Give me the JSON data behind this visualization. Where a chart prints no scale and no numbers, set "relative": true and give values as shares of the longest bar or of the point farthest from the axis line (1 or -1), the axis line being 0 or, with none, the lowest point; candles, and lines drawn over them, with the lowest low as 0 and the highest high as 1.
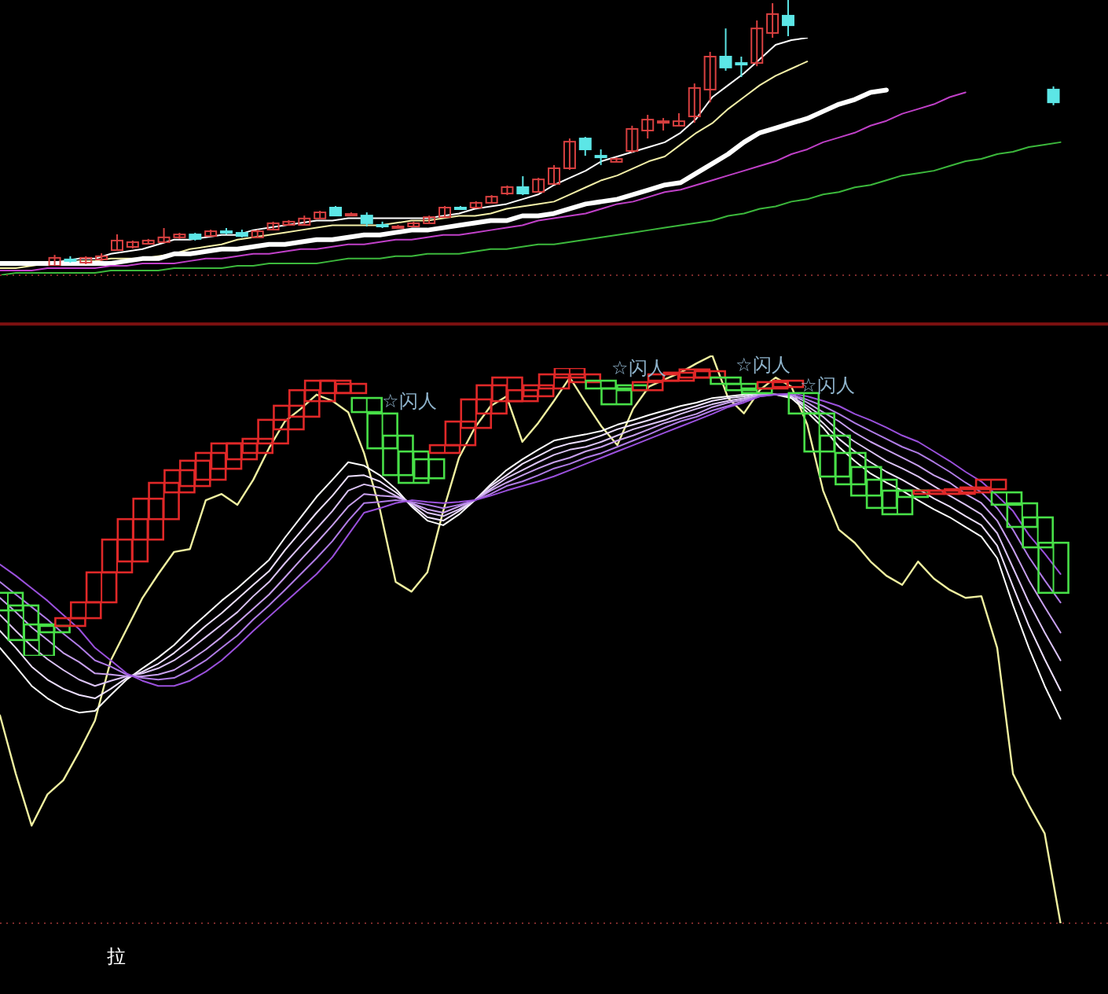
{
  "chart_data": [
    {
      "type": "candlestick",
      "relative": true,
      "categories": [
        null,
        null,
        null,
        null,
        null,
        null,
        null,
        null,
        null,
        null,
        null,
        null,
        null,
        null,
        null,
        null,
        null,
        null,
        null,
        null,
        null,
        null,
        null,
        null,
        null,
        null,
        null,
        null,
        null,
        null,
        null,
        null,
        null,
        null,
        null,
        null,
        null,
        null,
        null,
        null,
        null,
        null,
        null,
        null,
        null,
        null,
        null,
        null,
        null,
        null,
        null,
        null,
        null,
        null,
        null,
        null,
        null,
        null,
        null,
        null,
        null,
        null,
        null,
        null,
        null,
        null,
        null,
        null,
        null,
        null,
        null
      ],
      "ohlc": [
        null,
        null,
        null,
        [
          0,
          0.041,
          0,
          0.03
        ],
        [
          0.024,
          0.036,
          0.012,
          0.018
        ],
        [
          0.012,
          0.036,
          0.006,
          0.03
        ],
        [
          0.024,
          0.047,
          0.018,
          0.036
        ],
        [
          0.059,
          0.118,
          0.059,
          0.095
        ],
        [
          0.071,
          0.095,
          0.065,
          0.089
        ],
        [
          0.083,
          0.101,
          0.083,
          0.095
        ],
        [
          0.089,
          0.142,
          0.089,
          0.107
        ],
        [
          0.107,
          0.124,
          0.101,
          0.118
        ],
        [
          0.118,
          0.124,
          0.095,
          0.101
        ],
        [
          0.112,
          0.136,
          0.112,
          0.13
        ],
        [
          0.13,
          0.142,
          0.118,
          0.124
        ],
        [
          0.124,
          0.136,
          0.107,
          0.112
        ],
        [
          0.107,
          0.136,
          0.107,
          0.13
        ],
        [
          0.136,
          0.166,
          0.136,
          0.16
        ],
        [
          0.154,
          0.172,
          0.154,
          0.166
        ],
        [
          0.154,
          0.189,
          0.154,
          0.178
        ],
        [
          0.178,
          0.207,
          0.178,
          0.201
        ],
        [
          0.219,
          0.225,
          0.189,
          0.189
        ],
        [
          0.189,
          0.201,
          0.189,
          0.195
        ],
        [
          0.189,
          0.201,
          0.148,
          0.16
        ],
        [
          0.154,
          0.166,
          0.142,
          0.148
        ],
        [
          0.142,
          0.154,
          0.142,
          0.148
        ],
        [
          0.148,
          0.166,
          0.148,
          0.16
        ],
        [
          0.16,
          0.189,
          0.16,
          0.183
        ],
        [
          0.183,
          0.225,
          0.183,
          0.219
        ],
        [
          0.219,
          0.225,
          0.213,
          0.213
        ],
        [
          0.219,
          0.243,
          0.219,
          0.237
        ],
        [
          0.237,
          0.266,
          0.237,
          0.26
        ],
        [
          0.272,
          0.302,
          0.266,
          0.296
        ],
        [
          0.296,
          0.337,
          0.266,
          0.272
        ],
        [
          0.278,
          0.331,
          0.278,
          0.325
        ],
        [
          0.308,
          0.379,
          0.308,
          0.367
        ],
        [
          0.367,
          0.479,
          0.361,
          0.467
        ],
        [
          0.479,
          0.485,
          0.414,
          0.438
        ],
        [
          0.414,
          0.438,
          0.379,
          0.408
        ],
        [
          0.391,
          0.408,
          0.391,
          0.402
        ],
        [
          0.432,
          0.527,
          0.426,
          0.515
        ],
        [
          0.509,
          0.568,
          0.479,
          0.55
        ],
        [
          0.538,
          0.556,
          0.509,
          0.544
        ],
        [
          0.527,
          0.574,
          0.527,
          0.544
        ],
        [
          0.562,
          0.686,
          0.538,
          0.669
        ],
        [
          0.663,
          0.805,
          0.615,
          0.787
        ],
        [
          0.787,
          0.893,
          0.734,
          0.746
        ],
        [
          0.763,
          0.787,
          0.71,
          0.757
        ],
        [
          0.763,
          0.923,
          0.751,
          0.893
        ],
        [
          0.876,
          0.988,
          0.858,
          0.947
        ],
        [
          0.941,
          1,
          0.864,
          0.905
        ],
        null,
        null,
        null,
        null,
        null,
        null,
        null,
        null,
        null,
        null,
        null,
        null,
        null,
        null,
        null,
        null,
        [
          0.663,
          0.675,
          0.604,
          0.615
        ],
        null,
        null,
        null
      ],
      "colors": [
        null,
        null,
        null,
        "#d84040",
        "#5ce6e6",
        "#d84040",
        "#d84040",
        "#d84040",
        "#d84040",
        "#d84040",
        "#d84040",
        "#d84040",
        "#5ce6e6",
        "#d84040",
        "#5ce6e6",
        "#5ce6e6",
        "#d84040",
        "#d84040",
        "#d84040",
        "#d84040",
        "#d84040",
        "#5ce6e6",
        "#d84040",
        "#5ce6e6",
        "#5ce6e6",
        "#d84040",
        "#d84040",
        "#d84040",
        "#d84040",
        "#5ce6e6",
        "#d84040",
        "#d84040",
        "#d84040",
        "#5ce6e6",
        "#d84040",
        "#d84040",
        "#d84040",
        "#5ce6e6",
        "#5ce6e6",
        "#d84040",
        "#d84040",
        "#d84040",
        "#d84040",
        "#d84040",
        "#d84040",
        "#d84040",
        "#5ce6e6",
        "#5ce6e6",
        "#d84040",
        "#d84040",
        "#5ce6e6",
        null,
        null,
        null,
        null,
        null,
        null,
        null,
        null,
        null,
        null,
        null,
        null,
        null,
        null,
        null,
        null,
        "#5ce6e6",
        null,
        null,
        null
      ]
    },
    {
      "type": "line",
      "relative": true,
      "categories": [
        null,
        null,
        null,
        null,
        null,
        null,
        null,
        null,
        null,
        null,
        null,
        null,
        null,
        null,
        null,
        null,
        null,
        null,
        null,
        null,
        null,
        null,
        null,
        null,
        null,
        null,
        null,
        null,
        null,
        null,
        null,
        null,
        null,
        null,
        null,
        null,
        null,
        null,
        null,
        null,
        null,
        null,
        null,
        null,
        null,
        null,
        null,
        null,
        null,
        null,
        null,
        null,
        null,
        null,
        null,
        null,
        null,
        null,
        null,
        null,
        null,
        null,
        null,
        null,
        null,
        null,
        null,
        null,
        null,
        null,
        null
      ],
      "series": [
        {
          "color": "#ffffff",
          "values": [
            0.05,
            0.05,
            0.05,
            0.05,
            0.06,
            0.07,
            0.07,
            0.09,
            0.1,
            0.11,
            0.13,
            0.15,
            0.15,
            0.16,
            0.17,
            0.17,
            0.19,
            0.2,
            0.21,
            0.22,
            0.23,
            0.23,
            0.24,
            0.24,
            0.24,
            0.24,
            0.24,
            0.24,
            0.25,
            0.26,
            0.28,
            0.29,
            0.3,
            0.32,
            0.34,
            0.38,
            0.41,
            0.44,
            0.48,
            0.5,
            0.52,
            0.54,
            0.56,
            0.6,
            0.66,
            0.75,
            0.8,
            0.85,
            0.91,
            0.97,
            0.99,
            1,
            null,
            null,
            null,
            null,
            null,
            null,
            null,
            null,
            null,
            null,
            null,
            null,
            null,
            null,
            null,
            null,
            null,
            null,
            null
          ]
        },
        {
          "color": "#f4f0a8",
          "values": [
            0.03,
            0.03,
            0.04,
            0.05,
            0.05,
            0.06,
            0.06,
            0.07,
            0.07,
            0.07,
            0.08,
            0.09,
            0.11,
            0.12,
            0.13,
            0.15,
            0.16,
            0.17,
            0.18,
            0.19,
            0.2,
            0.21,
            0.21,
            0.21,
            0.21,
            0.22,
            0.23,
            0.23,
            0.24,
            0.25,
            0.25,
            0.26,
            0.28,
            0.29,
            0.3,
            0.31,
            0.34,
            0.37,
            0.4,
            0.42,
            0.45,
            0.48,
            0.5,
            0.55,
            0.6,
            0.64,
            0.7,
            0.75,
            0.8,
            0.84,
            0.87,
            0.9,
            null,
            null,
            null,
            null,
            null,
            null,
            null,
            null,
            null,
            null,
            null,
            null,
            null,
            null,
            null,
            null,
            null,
            null,
            null
          ]
        },
        {
          "color": "#ffffff",
          "values": [
            0.05,
            0.05,
            0.05,
            0.05,
            0.05,
            0.05,
            0.05,
            0.05,
            0.06,
            0.07,
            0.07,
            0.09,
            0.09,
            0.1,
            0.11,
            0.11,
            0.12,
            0.13,
            0.13,
            0.14,
            0.15,
            0.15,
            0.16,
            0.17,
            0.17,
            0.18,
            0.19,
            0.19,
            0.2,
            0.21,
            0.22,
            0.23,
            0.23,
            0.25,
            0.25,
            0.26,
            0.28,
            0.3,
            0.31,
            0.32,
            0.34,
            0.36,
            0.38,
            0.39,
            0.43,
            0.47,
            0.51,
            0.56,
            0.6,
            0.62,
            0.64,
            0.66,
            0.69,
            0.72,
            0.74,
            0.77,
            0.78,
            null,
            null,
            null,
            null,
            null,
            null,
            null,
            null,
            null,
            null,
            null,
            null,
            null,
            null
          ]
        },
        {
          "color": "#c040c8",
          "values": [
            0.02,
            0.02,
            0.02,
            0.03,
            0.03,
            0.03,
            0.03,
            0.04,
            0.04,
            0.05,
            0.05,
            0.05,
            0.06,
            0.07,
            0.07,
            0.08,
            0.09,
            0.09,
            0.1,
            0.11,
            0.11,
            0.12,
            0.13,
            0.13,
            0.14,
            0.15,
            0.15,
            0.16,
            0.17,
            0.17,
            0.18,
            0.19,
            0.2,
            0.21,
            0.23,
            0.24,
            0.25,
            0.26,
            0.28,
            0.3,
            0.31,
            0.33,
            0.35,
            0.36,
            0.38,
            0.4,
            0.42,
            0.44,
            0.46,
            0.48,
            0.51,
            0.53,
            0.56,
            0.58,
            0.6,
            0.63,
            0.65,
            0.68,
            0.7,
            0.72,
            0.75,
            0.77,
            null,
            null,
            null,
            null,
            null,
            null,
            null,
            null,
            null
          ]
        },
        {
          "color": "#3cb83c",
          "values": [
            0,
            0.01,
            0.01,
            0.01,
            0.01,
            0.01,
            0.01,
            0.02,
            0.02,
            0.02,
            0.02,
            0.03,
            0.03,
            0.03,
            0.03,
            0.04,
            0.04,
            0.05,
            0.05,
            0.05,
            0.05,
            0.06,
            0.07,
            0.07,
            0.07,
            0.08,
            0.08,
            0.09,
            0.09,
            0.09,
            0.1,
            0.11,
            0.11,
            0.12,
            0.13,
            0.13,
            0.14,
            0.15,
            0.16,
            0.17,
            0.18,
            0.19,
            0.2,
            0.21,
            0.22,
            0.23,
            0.25,
            0.26,
            0.28,
            0.29,
            0.31,
            0.32,
            0.34,
            0.35,
            0.37,
            0.38,
            0.4,
            0.42,
            0.43,
            0.44,
            0.46,
            0.48,
            0.49,
            0.51,
            0.52,
            0.54,
            0.55,
            0.56,
            null,
            null,
            null
          ]
        }
      ]
    },
    {
      "type": "candlestick",
      "relative": true,
      "categories": [
        null,
        null,
        null,
        null,
        null,
        null,
        null,
        null,
        null,
        null,
        null,
        null,
        null,
        null,
        null,
        null,
        null,
        null,
        null,
        null,
        null,
        null,
        null,
        null,
        null,
        null,
        null,
        null,
        null,
        null,
        null,
        null,
        null,
        null,
        null,
        null,
        null,
        null,
        null,
        null,
        null,
        null,
        null,
        null,
        null,
        null,
        null,
        null,
        null,
        null,
        null,
        null,
        null,
        null,
        null,
        null,
        null,
        null,
        null,
        null,
        null,
        null,
        null,
        null,
        null,
        null,
        null,
        null,
        null,
        null,
        null
      ],
      "ohlc": [
        [
          0.219,
          0.219,
          0.158,
          0.158
        ],
        [
          0.175,
          0.175,
          0.055,
          0.055
        ],
        [
          0.109,
          0.109,
          0,
          0
        ],
        [
          0.104,
          0.104,
          0.082,
          0.082
        ],
        [
          0.104,
          0.131,
          0.104,
          0.131
        ],
        [
          0.131,
          0.186,
          0.131,
          0.186
        ],
        [
          0.186,
          0.29,
          0.186,
          0.29
        ],
        [
          0.29,
          0.404,
          0.29,
          0.404
        ],
        [
          0.328,
          0.475,
          0.328,
          0.475
        ],
        [
          0.404,
          0.546,
          0.404,
          0.546
        ],
        [
          0.475,
          0.601,
          0.475,
          0.601
        ],
        [
          0.568,
          0.645,
          0.568,
          0.645
        ],
        [
          0.59,
          0.678,
          0.59,
          0.678
        ],
        [
          0.612,
          0.705,
          0.612,
          0.705
        ],
        [
          0.65,
          0.738,
          0.65,
          0.738
        ],
        [
          0.683,
          0.738,
          0.683,
          0.738
        ],
        [
          0.705,
          0.754,
          0.705,
          0.754
        ],
        [
          0.738,
          0.82,
          0.738,
          0.82
        ],
        [
          0.787,
          0.869,
          0.787,
          0.869
        ],
        [
          0.831,
          0.923,
          0.831,
          0.923
        ],
        [
          0.885,
          0.956,
          0.885,
          0.956
        ],
        [
          0.913,
          0.956,
          0.913,
          0.956
        ],
        [
          0.913,
          0.945,
          0.913,
          0.945
        ],
        [
          0.896,
          0.896,
          0.847,
          0.847
        ],
        [
          0.842,
          0.842,
          0.721,
          0.721
        ],
        [
          0.765,
          0.765,
          0.628,
          0.628
        ],
        [
          0.71,
          0.71,
          0.601,
          0.601
        ],
        [
          0.683,
          0.683,
          0.617,
          0.617
        ],
        [
          0.705,
          0.732,
          0.705,
          0.732
        ],
        [
          0.732,
          0.814,
          0.732,
          0.814
        ],
        [
          0.792,
          0.891,
          0.792,
          0.891
        ],
        [
          0.842,
          0.94,
          0.842,
          0.94
        ],
        [
          0.885,
          0.967,
          0.885,
          0.967
        ],
        [
          0.885,
          0.923,
          0.885,
          0.923
        ],
        [
          0.902,
          0.94,
          0.902,
          0.94
        ],
        [
          0.929,
          0.978,
          0.929,
          0.978
        ],
        [
          0.967,
          1,
          0.967,
          1
        ],
        [
          0.951,
          0.978,
          0.951,
          0.978
        ],
        [
          0.956,
          0.956,
          0.929,
          0.929
        ],
        [
          0.929,
          0.929,
          0.874,
          0.874
        ],
        [
          0.94,
          0.94,
          0.923,
          0.923
        ],
        [
          0.923,
          0.951,
          0.923,
          0.951
        ],
        [
          0.956,
          0.978,
          0.956,
          0.978
        ],
        [
          0.956,
          0.984,
          0.956,
          0.984
        ],
        [
          0.967,
          0.995,
          0.967,
          0.995
        ],
        [
          0.967,
          0.989,
          0.967,
          0.989
        ],
        [
          0.967,
          0.967,
          0.945,
          0.945
        ],
        [
          0.945,
          0.945,
          0.923,
          0.923
        ],
        [
          0.929,
          0.929,
          0.913,
          0.913
        ],
        [
          0.929,
          0.951,
          0.929,
          0.951
        ],
        [
          0.934,
          0.956,
          0.934,
          0.956
        ],
        [
          0.913,
          0.913,
          0.842,
          0.842
        ],
        [
          0.842,
          0.842,
          0.71,
          0.71
        ],
        [
          0.765,
          0.765,
          0.623,
          0.623
        ],
        [
          0.705,
          0.705,
          0.596,
          0.596
        ],
        [
          0.656,
          0.656,
          0.557,
          0.557
        ],
        [
          0.612,
          0.612,
          0.514,
          0.514
        ],
        [
          0.574,
          0.574,
          0.492,
          0.492
        ],
        [
          0.574,
          0.574,
          0.552,
          0.552
        ],
        [
          0.563,
          0.574,
          0.563,
          0.574
        ],
        [
          0.563,
          0.574,
          0.563,
          0.574
        ],
        [
          0.563,
          0.579,
          0.563,
          0.579
        ],
        [
          0.568,
          0.585,
          0.568,
          0.585
        ],
        [
          0.579,
          0.612,
          0.579,
          0.612
        ],
        [
          0.568,
          0.568,
          0.525,
          0.525
        ],
        [
          0.53,
          0.53,
          0.448,
          0.448
        ],
        [
          0.481,
          0.481,
          0.377,
          0.377
        ],
        [
          0.393,
          0.393,
          0.219,
          0.219
        ],
        null,
        null,
        null
      ],
      "colors": [
        "#48e048",
        "#48e048",
        "#48e048",
        "#48e048",
        "#e02828",
        "#e02828",
        "#e02828",
        "#e02828",
        "#e02828",
        "#e02828",
        "#e02828",
        "#e02828",
        "#e02828",
        "#e02828",
        "#e02828",
        "#e02828",
        "#e02828",
        "#e02828",
        "#e02828",
        "#e02828",
        "#e02828",
        "#e02828",
        "#e02828",
        "#48e048",
        "#48e048",
        "#48e048",
        "#48e048",
        "#48e048",
        "#e02828",
        "#e02828",
        "#e02828",
        "#e02828",
        "#e02828",
        "#e02828",
        "#e02828",
        "#e02828",
        "#e02828",
        "#e02828",
        "#48e048",
        "#48e048",
        "#48e048",
        "#e02828",
        "#e02828",
        "#e02828",
        "#e02828",
        "#e02828",
        "#48e048",
        "#48e048",
        "#48e048",
        "#e02828",
        "#e02828",
        "#48e048",
        "#48e048",
        "#48e048",
        "#48e048",
        "#48e048",
        "#48e048",
        "#48e048",
        "#48e048",
        "#e02828",
        "#e02828",
        "#e02828",
        "#e02828",
        "#e02828",
        "#48e048",
        "#48e048",
        "#48e048",
        "#48e048",
        null,
        null,
        null
      ]
    },
    {
      "type": "line",
      "relative": true,
      "categories": [
        null,
        null,
        null,
        null,
        null,
        null,
        null,
        null,
        null,
        null,
        null,
        null,
        null,
        null,
        null,
        null,
        null,
        null,
        null,
        null,
        null,
        null,
        null,
        null,
        null,
        null,
        null,
        null,
        null,
        null,
        null,
        null,
        null,
        null,
        null,
        null,
        null,
        null,
        null,
        null,
        null,
        null,
        null,
        null,
        null,
        null,
        null,
        null,
        null,
        null,
        null,
        null,
        null,
        null,
        null,
        null,
        null,
        null,
        null,
        null,
        null,
        null,
        null,
        null,
        null,
        null,
        null,
        null,
        null,
        null,
        null
      ],
      "series": [
        {
          "color": "#f0f0a0",
          "values": [
            0.366,
            0.263,
            0.172,
            0.227,
            0.252,
            0.302,
            0.357,
            0.463,
            0.518,
            0.573,
            0.615,
            0.654,
            0.659,
            0.745,
            0.756,
            0.737,
            0.781,
            0.837,
            0.884,
            0.906,
            0.931,
            0.92,
            0.9,
            0.828,
            0.729,
            0.601,
            0.584,
            0.618,
            0.726,
            0.82,
            0.873,
            0.911,
            0.928,
            0.848,
            0.881,
            0.92,
            0.961,
            0.917,
            0.875,
            0.842,
            0.906,
            0.945,
            0.958,
            0.97,
            0.986,
            1,
            0.925,
            0.898,
            0.939,
            0.961,
            0.945,
            0.878,
            0.762,
            0.693,
            0.67,
            0.637,
            0.612,
            0.596,
            0.637,
            0.607,
            0.587,
            0.573,
            0.576,
            0.485,
            0.263,
            0.208,
            0.158,
            0,
            null,
            null,
            null
          ]
        },
        {
          "color": "#ffffff",
          "values": [
            0.485,
            0.452,
            0.418,
            0.396,
            0.38,
            0.371,
            0.374,
            0.402,
            0.429,
            0.449,
            0.468,
            0.49,
            0.518,
            0.543,
            0.568,
            0.59,
            0.615,
            0.64,
            0.679,
            0.715,
            0.751,
            0.781,
            0.812,
            0.806,
            0.789,
            0.765,
            0.734,
            0.709,
            0.701,
            0.72,
            0.745,
            0.773,
            0.798,
            0.817,
            0.834,
            0.85,
            0.856,
            0.861,
            0.867,
            0.878,
            0.886,
            0.895,
            0.903,
            0.911,
            0.917,
            0.925,
            0.928,
            0.931,
            0.933,
            0.931,
            0.925,
            0.9,
            0.873,
            0.839,
            0.814,
            0.792,
            0.776,
            0.762,
            0.745,
            0.729,
            0.715,
            0.698,
            0.681,
            0.643,
            0.56,
            0.485,
            0.418,
            0.36,
            null,
            null,
            null
          ]
        },
        {
          "color": "#eee0ff",
          "values": [
            0.515,
            0.485,
            0.452,
            0.429,
            0.413,
            0.402,
            0.396,
            0.413,
            0.432,
            0.443,
            0.457,
            0.476,
            0.499,
            0.524,
            0.546,
            0.571,
            0.596,
            0.62,
            0.657,
            0.69,
            0.723,
            0.753,
            0.787,
            0.789,
            0.778,
            0.759,
            0.737,
            0.715,
            0.709,
            0.726,
            0.745,
            0.77,
            0.789,
            0.809,
            0.823,
            0.837,
            0.845,
            0.85,
            0.859,
            0.87,
            0.878,
            0.886,
            0.895,
            0.903,
            0.911,
            0.92,
            0.925,
            0.928,
            0.933,
            0.931,
            0.928,
            0.906,
            0.881,
            0.853,
            0.831,
            0.812,
            0.795,
            0.781,
            0.765,
            0.748,
            0.734,
            0.717,
            0.701,
            0.665,
            0.593,
            0.524,
            0.465,
            0.41,
            null,
            null,
            null
          ]
        },
        {
          "color": "#dcc4f6",
          "values": [
            0.543,
            0.515,
            0.488,
            0.465,
            0.446,
            0.429,
            0.418,
            0.427,
            0.435,
            0.44,
            0.449,
            0.463,
            0.482,
            0.504,
            0.526,
            0.548,
            0.576,
            0.601,
            0.634,
            0.665,
            0.695,
            0.726,
            0.762,
            0.773,
            0.767,
            0.753,
            0.74,
            0.723,
            0.717,
            0.729,
            0.745,
            0.765,
            0.784,
            0.798,
            0.812,
            0.825,
            0.834,
            0.839,
            0.848,
            0.859,
            0.87,
            0.878,
            0.886,
            0.897,
            0.906,
            0.914,
            0.92,
            0.925,
            0.931,
            0.931,
            0.928,
            0.911,
            0.892,
            0.867,
            0.848,
            0.831,
            0.814,
            0.801,
            0.787,
            0.77,
            0.753,
            0.737,
            0.72,
            0.687,
            0.626,
            0.565,
            0.512,
            0.463,
            null,
            null,
            null
          ]
        },
        {
          "color": "#c8a0ee",
          "values": [
            0.573,
            0.548,
            0.521,
            0.499,
            0.476,
            0.46,
            0.44,
            0.438,
            0.435,
            0.435,
            0.438,
            0.446,
            0.463,
            0.482,
            0.504,
            0.529,
            0.554,
            0.579,
            0.609,
            0.64,
            0.67,
            0.701,
            0.734,
            0.756,
            0.753,
            0.751,
            0.74,
            0.729,
            0.723,
            0.734,
            0.745,
            0.762,
            0.776,
            0.789,
            0.801,
            0.812,
            0.82,
            0.831,
            0.839,
            0.85,
            0.859,
            0.87,
            0.881,
            0.889,
            0.897,
            0.909,
            0.917,
            0.922,
            0.931,
            0.931,
            0.931,
            0.917,
            0.9,
            0.884,
            0.864,
            0.848,
            0.834,
            0.82,
            0.806,
            0.789,
            0.776,
            0.756,
            0.74,
            0.709,
            0.659,
            0.604,
            0.557,
            0.512,
            null,
            null,
            null
          ]
        },
        {
          "color": "#b07ce6",
          "values": [
            0.601,
            0.579,
            0.557,
            0.535,
            0.51,
            0.488,
            0.463,
            0.452,
            0.438,
            0.432,
            0.429,
            0.432,
            0.446,
            0.463,
            0.485,
            0.507,
            0.535,
            0.56,
            0.587,
            0.615,
            0.643,
            0.673,
            0.709,
            0.74,
            0.742,
            0.745,
            0.742,
            0.737,
            0.731,
            0.737,
            0.745,
            0.756,
            0.77,
            0.778,
            0.789,
            0.801,
            0.809,
            0.82,
            0.828,
            0.839,
            0.85,
            0.861,
            0.873,
            0.884,
            0.892,
            0.903,
            0.911,
            0.92,
            0.928,
            0.931,
            0.931,
            0.922,
            0.911,
            0.897,
            0.881,
            0.867,
            0.853,
            0.839,
            0.828,
            0.812,
            0.795,
            0.776,
            0.759,
            0.731,
            0.693,
            0.645,
            0.604,
            0.565,
            null,
            null,
            null
          ]
        },
        {
          "color": "#9a50dc",
          "values": [
            0.632,
            0.612,
            0.59,
            0.568,
            0.543,
            0.518,
            0.485,
            0.463,
            0.44,
            0.427,
            0.418,
            0.418,
            0.427,
            0.443,
            0.463,
            0.488,
            0.515,
            0.54,
            0.565,
            0.59,
            0.615,
            0.645,
            0.684,
            0.723,
            0.731,
            0.74,
            0.745,
            0.742,
            0.74,
            0.742,
            0.745,
            0.753,
            0.762,
            0.77,
            0.778,
            0.787,
            0.798,
            0.809,
            0.82,
            0.831,
            0.842,
            0.853,
            0.864,
            0.875,
            0.886,
            0.897,
            0.909,
            0.917,
            0.928,
            0.931,
            0.933,
            0.928,
            0.92,
            0.911,
            0.897,
            0.886,
            0.873,
            0.859,
            0.848,
            0.831,
            0.814,
            0.795,
            0.778,
            0.753,
            0.726,
            0.684,
            0.651,
            0.615,
            null,
            null,
            null
          ]
        }
      ],
      "annotations": [
        "☆闪人",
        "☆闪人",
        "☆闪人",
        "☆闪人",
        "拉"
      ]
    }
  ]
}
